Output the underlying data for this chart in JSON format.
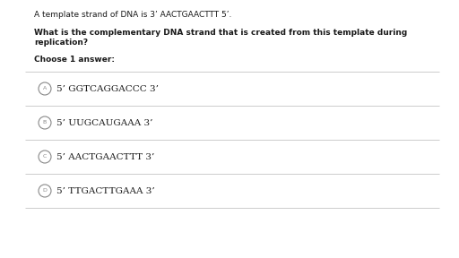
{
  "bg_color": "#ffffff",
  "text_color": "#1a1a1a",
  "gray_color": "#888888",
  "line_color": "#cccccc",
  "intro_line": "A template strand of DNA is 3’ AACTGAACTTT 5’.",
  "question_line1": "What is the complementary DNA strand that is created from this template during",
  "question_line2": "replication?",
  "choose_label": "Choose 1 answer:",
  "answers": [
    {
      "letter": "A",
      "text": "5’ GGTCAGGACCC 3’"
    },
    {
      "letter": "B",
      "text": "5’ UUGCAUGAAA 3’"
    },
    {
      "letter": "C",
      "text": "5’ AACTGAACTTT 3’"
    },
    {
      "letter": "D",
      "text": "5’ TTGACTTGAAA 3’"
    }
  ],
  "figsize": [
    5.12,
    2.88
  ],
  "dpi": 100
}
